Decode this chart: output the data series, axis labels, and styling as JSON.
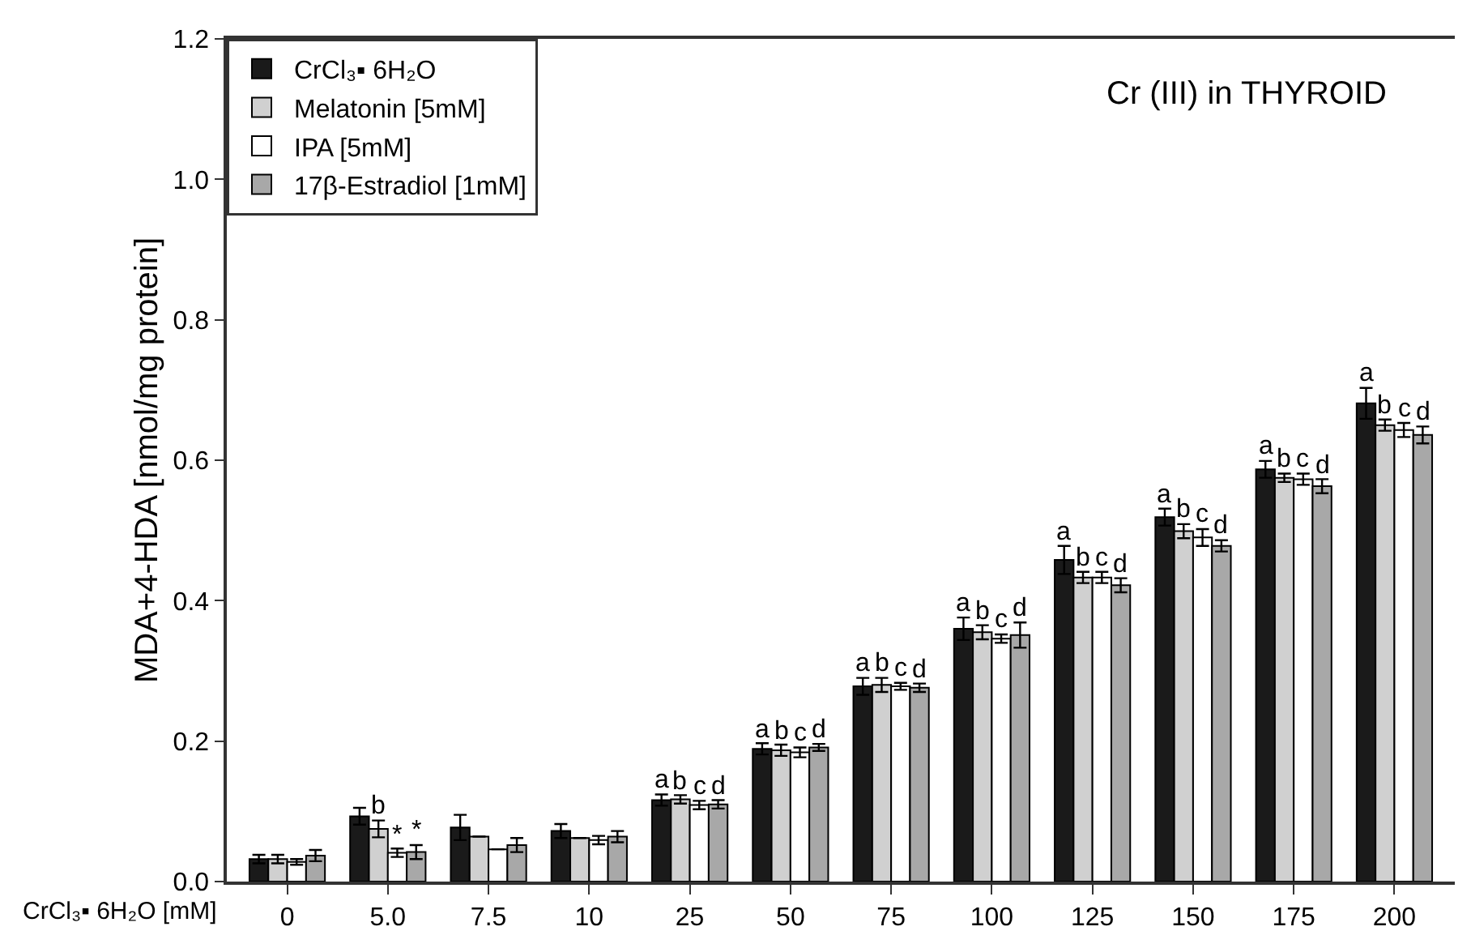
{
  "chart_data": {
    "type": "bar",
    "title": "Cr (III) in THYROID",
    "xlabel": "CrCl₃▪ 6H₂O [mM]",
    "ylabel": "MDA+4-HDA [nmol/mg protein]",
    "categories": [
      "0",
      "5.0",
      "7.5",
      "10",
      "25",
      "50",
      "75",
      "100",
      "125",
      "150",
      "175",
      "200"
    ],
    "series": [
      {
        "name": "CrCl₃▪ 6H₂O",
        "color": "#1a1a1a",
        "values": [
          0.032,
          0.093,
          0.077,
          0.072,
          0.116,
          0.189,
          0.278,
          0.36,
          0.458,
          0.519,
          0.587,
          0.681
        ],
        "errors": [
          0.006,
          0.012,
          0.018,
          0.01,
          0.008,
          0.008,
          0.012,
          0.016,
          0.02,
          0.012,
          0.012,
          0.022
        ],
        "value_labels": [
          null,
          null,
          null,
          null,
          "a",
          "a",
          "a",
          "a",
          "a",
          "a",
          "a",
          "a"
        ]
      },
      {
        "name": "Melatonin [5mM]",
        "color": "#d0d0d0",
        "values": [
          0.032,
          0.075,
          0.064,
          0.062,
          0.117,
          0.187,
          0.28,
          0.355,
          0.433,
          0.499,
          0.575,
          0.65
        ],
        "errors": [
          0.006,
          0.012,
          null,
          null,
          0.006,
          0.008,
          0.01,
          0.01,
          0.008,
          0.01,
          0.006,
          0.008
        ],
        "value_labels": [
          null,
          "b",
          null,
          null,
          "b",
          "b",
          "b",
          "b",
          "b",
          "b",
          "b",
          "b"
        ]
      },
      {
        "name": "IPA [5mM]",
        "color": "#ffffff",
        "values": [
          0.028,
          0.041,
          0.046,
          0.059,
          0.109,
          0.184,
          0.278,
          0.346,
          0.433,
          0.49,
          0.573,
          0.643
        ],
        "errors": [
          0.004,
          0.006,
          null,
          0.006,
          0.006,
          0.007,
          0.005,
          0.006,
          0.008,
          0.012,
          0.008,
          0.01
        ],
        "value_labels": [
          null,
          "*",
          null,
          null,
          "c",
          "c",
          "c",
          "c",
          "c",
          "c",
          "c",
          "c"
        ]
      },
      {
        "name": "17β-Estradiol [1mM]",
        "color": "#a8a8a8",
        "values": [
          0.037,
          0.042,
          0.052,
          0.064,
          0.11,
          0.191,
          0.276,
          0.351,
          0.422,
          0.478,
          0.563,
          0.636
        ],
        "errors": [
          0.008,
          0.01,
          0.01,
          0.008,
          0.006,
          0.005,
          0.006,
          0.018,
          0.01,
          0.008,
          0.01,
          0.012
        ],
        "value_labels": [
          null,
          "*",
          null,
          null,
          "d",
          "d",
          "d",
          "d",
          "d",
          "d",
          "d",
          "d"
        ]
      }
    ],
    "ylim": [
      0,
      1.2
    ],
    "yticks": [
      {
        "value": 0,
        "label": "0.0"
      },
      0.2,
      0.4,
      0.6,
      0.8,
      {
        "value": 1.0,
        "label": "1.0"
      },
      1.2
    ],
    "legend": "top left"
  }
}
